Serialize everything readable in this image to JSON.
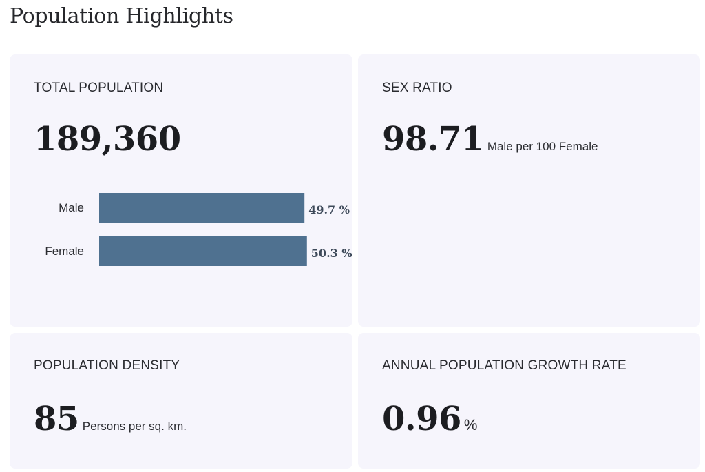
{
  "page": {
    "title": "Population Highlights"
  },
  "cards": {
    "total_population": {
      "label": "TOTAL POPULATION",
      "value": "189,360"
    },
    "sex_ratio": {
      "label": "SEX RATIO",
      "value": "98.71",
      "unit": "Male per 100 Female"
    },
    "population_density": {
      "label": "POPULATION DENSITY",
      "value": "85",
      "unit": "Persons per sq. km."
    },
    "growth_rate": {
      "label": "ANNUAL POPULATION GROWTH RATE",
      "value": "0.96",
      "unit": "%"
    }
  },
  "colors": {
    "bar": "#4f7190",
    "card_bg": "#f6f5fc"
  },
  "chart_data": {
    "type": "bar",
    "orientation": "horizontal",
    "categories": [
      "Male",
      "Female"
    ],
    "values": [
      49.7,
      50.3
    ],
    "value_labels": [
      "49.7 %",
      "50.3 %"
    ],
    "xlim": [
      0,
      55
    ],
    "grid": false
  }
}
